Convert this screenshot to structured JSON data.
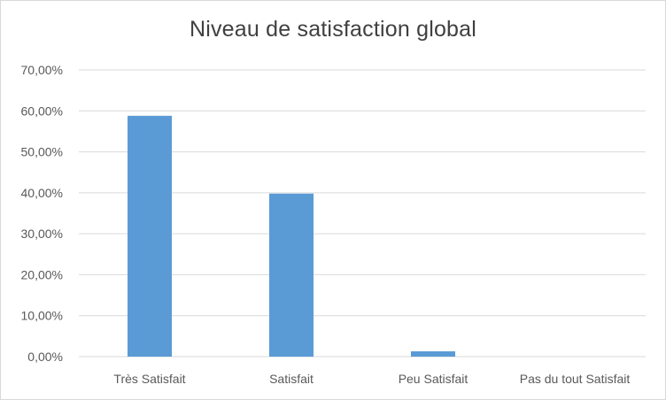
{
  "chart_data": {
    "type": "bar",
    "title": "Niveau de satisfaction global",
    "categories": [
      "Très Satisfait",
      "Satisfait",
      "Peu Satisfait",
      "Pas du tout Satisfait"
    ],
    "values": [
      58.8,
      39.8,
      1.3,
      0.0
    ],
    "ylim": [
      0,
      70
    ],
    "y_ticks": [
      0,
      10,
      20,
      30,
      40,
      50,
      60,
      70
    ],
    "y_tick_labels": [
      "0,00%",
      "10,00%",
      "20,00%",
      "30,00%",
      "40,00%",
      "50,00%",
      "60,00%",
      "70,00%"
    ],
    "grid": true,
    "bar_color": "#5b9bd5",
    "grid_color": "#d9d9d9"
  }
}
